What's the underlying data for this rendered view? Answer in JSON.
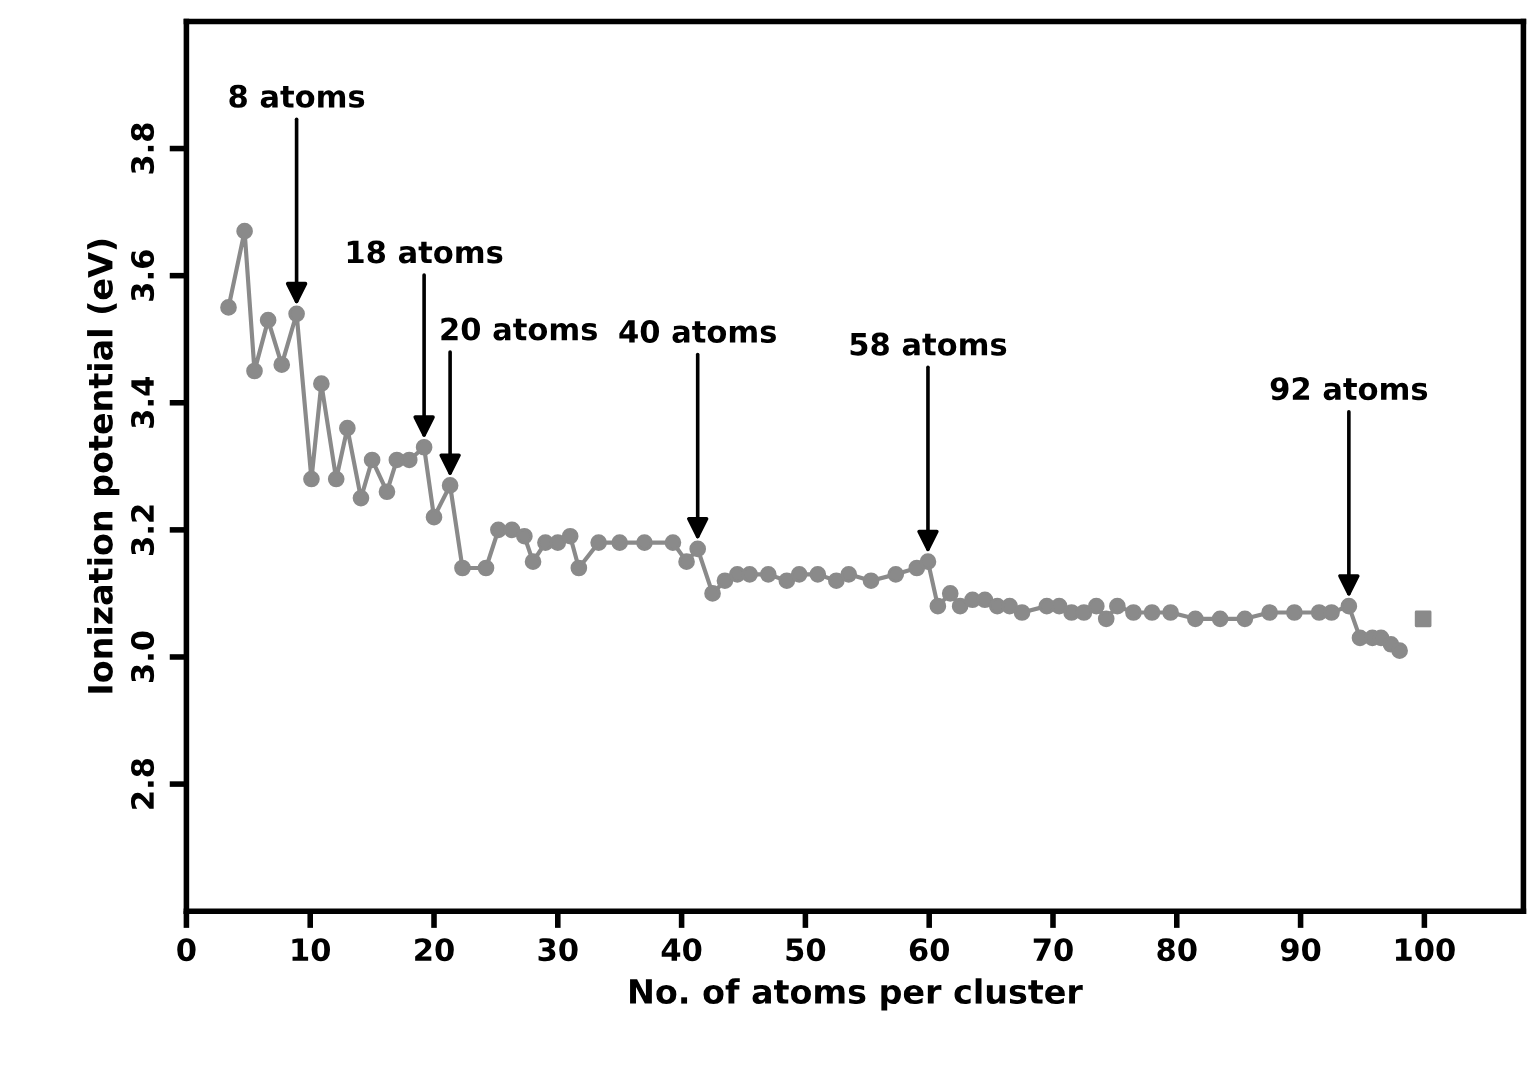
{
  "chart_data": {
    "type": "line",
    "xlabel": "No. of atoms per cluster",
    "ylabel": "Ionization potential (eV)",
    "xlim": [
      0,
      108
    ],
    "xticks": [
      0,
      10,
      20,
      30,
      40,
      50,
      60,
      70,
      80,
      90,
      100
    ],
    "ylim": [
      2.6,
      4.0
    ],
    "yticks": [
      2.8,
      {
        "value": 3.0,
        "label": "3.0"
      },
      3.2,
      3.4,
      3.6,
      3.8
    ],
    "grid": false,
    "legend": false,
    "marker": "circle",
    "line_style": "solid",
    "series": [
      {
        "color": "#8a8a8a",
        "x": [
          3.4,
          4.7,
          5.5,
          6.6,
          7.7,
          8.9,
          10.1,
          10.9,
          12.1,
          13.0,
          14.1,
          15.0,
          16.2,
          17.0,
          18.0,
          19.2,
          20.0,
          21.3,
          22.3,
          24.2,
          25.2,
          26.3,
          27.3,
          28.0,
          29.0,
          30.0,
          31.0,
          31.7,
          33.3,
          35.0,
          37.0,
          39.3,
          40.4,
          41.3,
          42.5,
          43.5,
          44.5,
          45.5,
          47.0,
          48.5,
          49.5,
          51.0,
          52.5,
          53.5,
          55.3,
          57.3,
          59.0,
          59.9,
          60.7,
          61.7,
          62.5,
          63.5,
          64.5,
          65.5,
          66.5,
          67.5,
          69.5,
          70.5,
          71.5,
          72.5,
          73.5,
          74.3,
          75.2,
          76.5,
          78.0,
          79.5,
          81.5,
          83.5,
          85.5,
          87.5,
          89.5,
          91.5,
          92.5,
          93.9,
          94.8,
          95.8,
          96.5,
          97.3,
          98.0
        ],
        "values": [
          3.55,
          3.67,
          3.45,
          3.53,
          3.46,
          3.54,
          3.28,
          3.43,
          3.28,
          3.36,
          3.25,
          3.31,
          3.26,
          3.31,
          3.31,
          3.33,
          3.22,
          3.27,
          3.14,
          3.14,
          3.2,
          3.2,
          3.19,
          3.15,
          3.18,
          3.18,
          3.19,
          3.14,
          3.18,
          3.18,
          3.18,
          3.18,
          3.15,
          3.17,
          3.1,
          3.12,
          3.13,
          3.13,
          3.13,
          3.12,
          3.13,
          3.13,
          3.12,
          3.13,
          3.12,
          3.13,
          3.14,
          3.15,
          3.08,
          3.1,
          3.08,
          3.09,
          3.09,
          3.08,
          3.08,
          3.07,
          3.08,
          3.08,
          3.07,
          3.07,
          3.08,
          3.06,
          3.08,
          3.07,
          3.07,
          3.07,
          3.06,
          3.06,
          3.06,
          3.07,
          3.07,
          3.07,
          3.07,
          3.08,
          3.03,
          3.03,
          3.03,
          3.02,
          3.01
        ]
      },
      {
        "type": "scatter",
        "marker": "square",
        "color": "#8a8a8a",
        "x": [
          99.9
        ],
        "values": [
          3.06
        ]
      }
    ],
    "annotations": [
      {
        "text": "8 atoms",
        "x": 8.9,
        "y": 3.54
      },
      {
        "text": "18 atoms",
        "x": 19.2,
        "y": 3.33
      },
      {
        "text": "20 atoms",
        "x": 21.3,
        "y": 3.27
      },
      {
        "text": "40 atoms",
        "x": 41.3,
        "y": 3.17
      },
      {
        "text": "58 atoms",
        "x": 59.9,
        "y": 3.15
      },
      {
        "text": "92 atoms",
        "x": 93.9,
        "y": 3.08
      }
    ]
  }
}
